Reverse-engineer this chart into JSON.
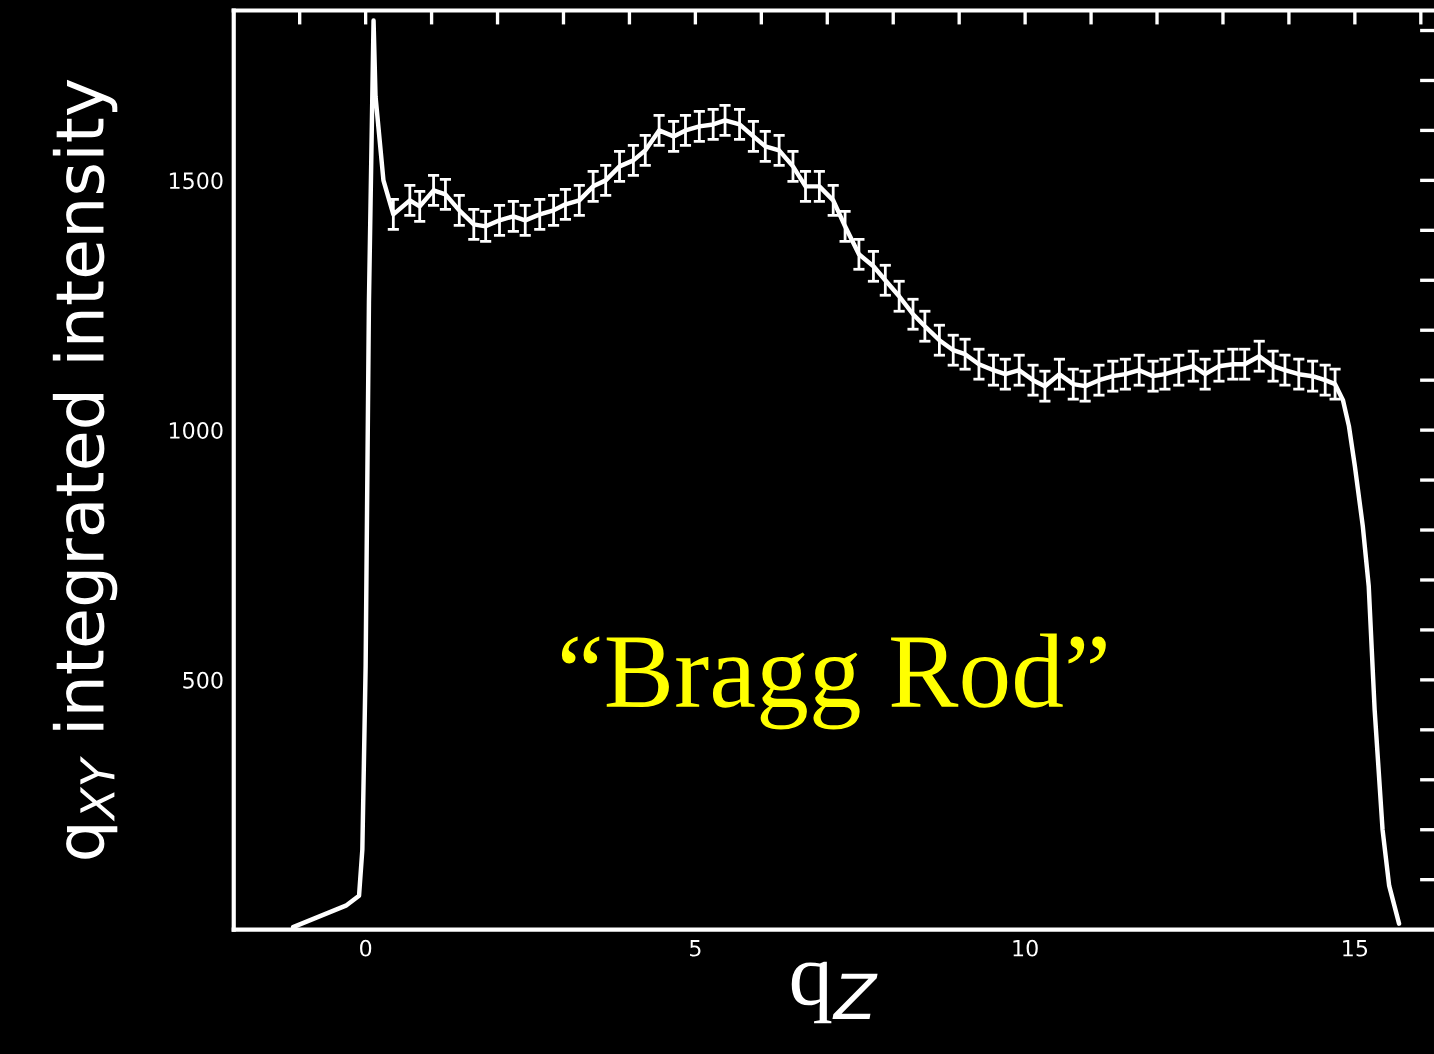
{
  "chart_data": {
    "type": "line",
    "xlabel": "q$_{Z}$",
    "ylabel": "q$_{XY}$ integrated intensity",
    "annotations": [
      "“Bragg Rod”"
    ],
    "series": [
      {
        "color": "#ffffff",
        "x": [
          -1.1,
          -0.3,
          -0.1,
          -0.05,
          0.0,
          0.05,
          0.12,
          0.15,
          0.27,
          0.42,
          0.67,
          0.82,
          1.03,
          1.21,
          1.42,
          1.64,
          1.82,
          2.03,
          2.24,
          2.42,
          2.64,
          2.85,
          3.03,
          3.24,
          3.45,
          3.64,
          3.85,
          4.06,
          4.24,
          4.45,
          4.67,
          4.85,
          5.06,
          5.27,
          5.45,
          5.67,
          5.88,
          6.06,
          6.27,
          6.48,
          6.67,
          6.88,
          7.09,
          7.27,
          7.48,
          7.7,
          7.88,
          8.09,
          8.3,
          8.48,
          8.7,
          8.91,
          9.09,
          9.3,
          9.52,
          9.7,
          9.91,
          10.12,
          10.3,
          10.52,
          10.73,
          10.91,
          11.12,
          11.33,
          11.52,
          11.73,
          11.94,
          12.12,
          12.33,
          12.55,
          12.73,
          12.94,
          13.15,
          13.33,
          13.55,
          13.76,
          13.94,
          14.15,
          14.36,
          14.55,
          14.7,
          14.82,
          14.91,
          15.0,
          15.12,
          15.21,
          15.3,
          15.42,
          15.52,
          15.67
        ],
        "values": [
          5,
          48,
          68,
          160,
          528,
          1256,
          1820,
          1668,
          1500,
          1432,
          1460,
          1448,
          1480,
          1472,
          1440,
          1412,
          1408,
          1420,
          1428,
          1420,
          1432,
          1440,
          1452,
          1460,
          1488,
          1500,
          1528,
          1540,
          1560,
          1600,
          1588,
          1600,
          1608,
          1612,
          1620,
          1612,
          1588,
          1568,
          1560,
          1528,
          1488,
          1488,
          1460,
          1408,
          1352,
          1328,
          1300,
          1268,
          1232,
          1208,
          1180,
          1160,
          1152,
          1132,
          1120,
          1112,
          1120,
          1100,
          1088,
          1112,
          1092,
          1088,
          1100,
          1108,
          1112,
          1120,
          1108,
          1112,
          1120,
          1128,
          1112,
          1128,
          1132,
          1132,
          1148,
          1128,
          1120,
          1112,
          1108,
          1100,
          1092,
          1060,
          1008,
          928,
          808,
          688,
          440,
          200,
          88,
          12
        ],
        "errors": [
          null,
          null,
          null,
          null,
          null,
          null,
          null,
          null,
          null,
          30,
          30,
          30,
          30,
          30,
          30,
          30,
          30,
          30,
          30,
          30,
          30,
          30,
          30,
          30,
          30,
          30,
          30,
          30,
          30,
          30,
          30,
          30,
          30,
          30,
          30,
          30,
          30,
          30,
          30,
          30,
          30,
          30,
          30,
          30,
          30,
          30,
          30,
          30,
          30,
          30,
          30,
          30,
          30,
          30,
          30,
          30,
          30,
          30,
          30,
          30,
          30,
          30,
          30,
          30,
          30,
          30,
          30,
          30,
          30,
          30,
          30,
          30,
          30,
          30,
          30,
          30,
          30,
          30,
          30,
          30,
          30,
          null,
          null,
          null,
          null,
          null,
          null,
          null,
          null,
          null
        ]
      }
    ],
    "xlim": [
      -2,
      16.2
    ],
    "ylim": [
      0,
      1840
    ],
    "xticks": [
      {
        "value": -1,
        "label": null
      },
      0,
      {
        "value": 1,
        "label": null
      },
      {
        "value": 2,
        "label": null
      },
      {
        "value": 3,
        "label": null
      },
      {
        "value": 4,
        "label": null
      },
      5,
      {
        "value": 6,
        "label": null
      },
      {
        "value": 7,
        "label": null
      },
      {
        "value": 8,
        "label": null
      },
      {
        "value": 9,
        "label": null
      },
      10,
      {
        "value": 11,
        "label": null
      },
      {
        "value": 12,
        "label": null
      },
      {
        "value": 13,
        "label": null
      },
      {
        "value": 14,
        "label": null
      },
      15,
      {
        "value": 16,
        "label": null
      }
    ],
    "yticks": [
      {
        "value": 100,
        "label": null
      },
      {
        "value": 200,
        "label": null
      },
      {
        "value": 300,
        "label": null
      },
      {
        "value": 400,
        "label": null
      },
      500,
      {
        "value": 600,
        "label": null
      },
      {
        "value": 700,
        "label": null
      },
      {
        "value": 800,
        "label": null
      },
      {
        "value": 900,
        "label": null
      },
      1000,
      {
        "value": 1100,
        "label": null
      },
      {
        "value": 1200,
        "label": null
      },
      {
        "value": 1300,
        "label": null
      },
      {
        "value": 1400,
        "label": null
      },
      1500,
      {
        "value": 1600,
        "label": null
      },
      {
        "value": 1700,
        "label": null
      },
      {
        "value": 1800,
        "label": null
      }
    ],
    "grid": false,
    "legend": false,
    "marker": "none",
    "line_style": "solid"
  }
}
